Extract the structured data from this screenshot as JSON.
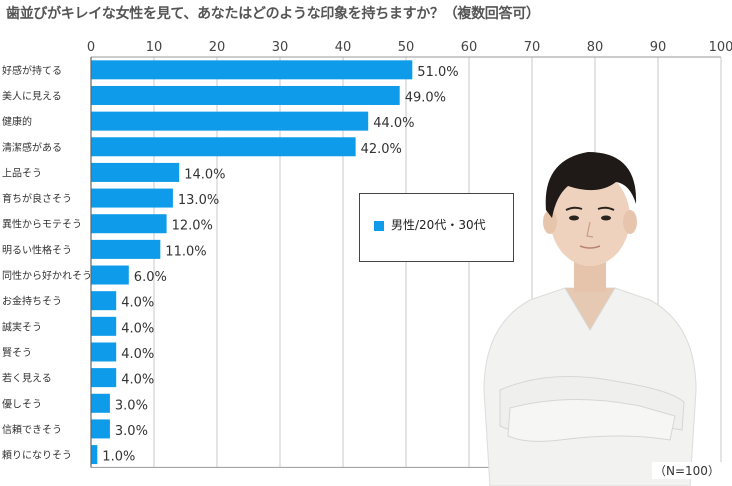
{
  "chart_data": {
    "type": "bar",
    "orientation": "horizontal",
    "title": "歯並びがキレイな女性を見て、あなたはどのような印象を持ちますか？（複数回答可）",
    "categories": [
      "好感が持てる",
      "美人に見える",
      "健康的",
      "清潔感がある",
      "上品そう",
      "育ちが良さそう",
      "異性からモテそう",
      "明るい性格そう",
      "同性から好かれそう",
      "お金持ちそう",
      "誠実そう",
      "賢そう",
      "若く見える",
      "優しそう",
      "信頼できそう",
      "頼りになりそう"
    ],
    "series": [
      {
        "name": "男性/20代・30代",
        "values": [
          51.0,
          49.0,
          44.0,
          42.0,
          14.0,
          13.0,
          12.0,
          11.0,
          6.0,
          4.0,
          4.0,
          4.0,
          4.0,
          3.0,
          3.0,
          1.0
        ]
      }
    ],
    "value_labels": [
      "51.0%",
      "49.0%",
      "44.0%",
      "42.0%",
      "14.0%",
      "13.0%",
      "12.0%",
      "11.0%",
      "6.0%",
      "4.0%",
      "4.0%",
      "4.0%",
      "4.0%",
      "3.0%",
      "3.0%",
      "1.0%"
    ],
    "xticks": [
      "0",
      "10",
      "20",
      "30",
      "40",
      "50",
      "60",
      "70",
      "80",
      "90",
      "100"
    ],
    "xlim": [
      0,
      100
    ],
    "grid": true,
    "legend_position": "center-right",
    "bar_color": "#0d9bea",
    "note": "（N=100）"
  }
}
